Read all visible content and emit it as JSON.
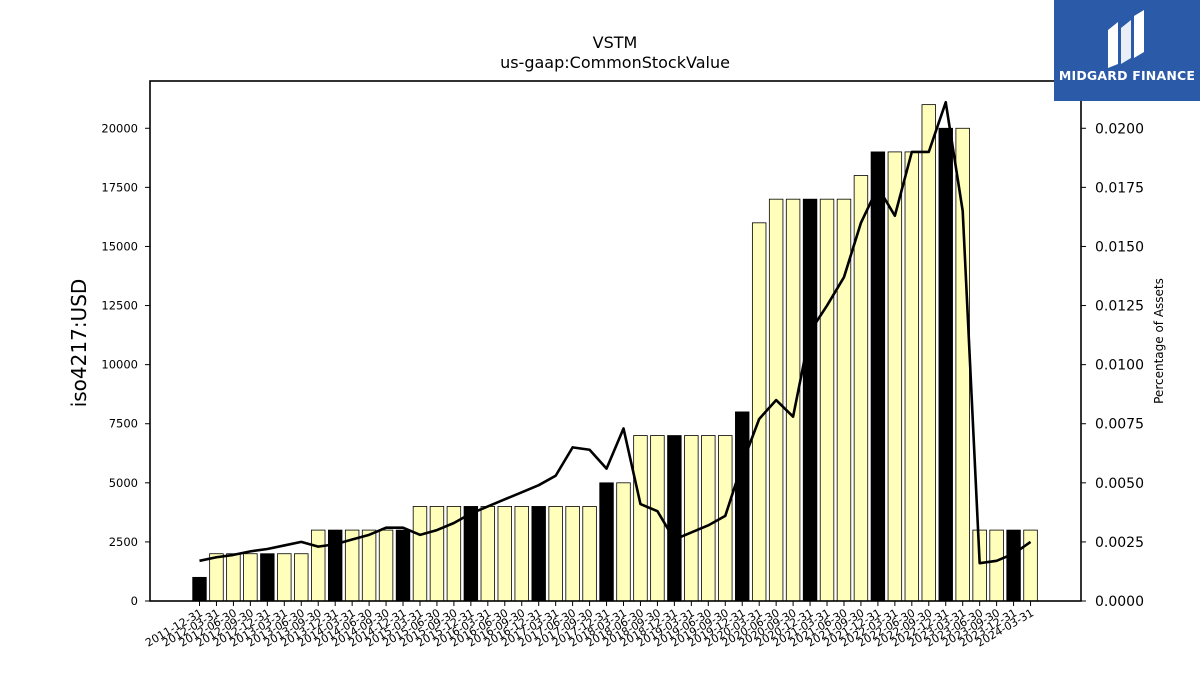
{
  "logo": {
    "text": "MIDGARD FINANCE",
    "icon": "midgard-logo-icon",
    "bg_color": "#2a5aa8"
  },
  "chart_data": {
    "type": "bar",
    "title": "VSTM",
    "subtitle": "us-gaap:CommonStockValue",
    "ylabel": "iso4217:USD",
    "y2label": "Percentage of Assets",
    "ylim": [
      0,
      22000
    ],
    "y2lim": [
      0,
      0.022
    ],
    "yticks": [
      "0",
      "2500",
      "5000",
      "7500",
      "10000",
      "12500",
      "15000",
      "17500",
      "20000"
    ],
    "yticks_values": [
      0,
      2500,
      5000,
      7500,
      10000,
      12500,
      15000,
      17500,
      20000
    ],
    "y2ticks": [
      "0.0000",
      "0.0025",
      "0.0050",
      "0.0075",
      "0.0100",
      "0.0125",
      "0.0150",
      "0.0175",
      "0.0200"
    ],
    "y2ticks_values": [
      0,
      0.0025,
      0.005,
      0.0075,
      0.01,
      0.0125,
      0.015,
      0.0175,
      0.02
    ],
    "bar_colors": {
      "annual": "#000000",
      "quarterly": "#ffffbb"
    },
    "line_color": "#000000",
    "categories": [
      "2011-12-31",
      "2012-03-31",
      "2012-06-30",
      "2012-09-30",
      "2012-12-31",
      "2013-03-31",
      "2013-06-30",
      "2013-09-30",
      "2013-12-31",
      "2014-03-31",
      "2014-06-30",
      "2014-09-30",
      "2014-12-31",
      "2015-03-31",
      "2015-06-30",
      "2015-09-30",
      "2015-12-31",
      "2016-03-31",
      "2016-06-30",
      "2016-09-30",
      "2016-12-31",
      "2017-03-31",
      "2017-06-30",
      "2017-09-30",
      "2017-12-31",
      "2018-03-31",
      "2018-06-30",
      "2018-09-30",
      "2018-12-31",
      "2019-03-31",
      "2019-06-30",
      "2019-09-30",
      "2019-12-31",
      "2020-03-31",
      "2020-06-30",
      "2020-09-30",
      "2020-12-31",
      "2021-03-31",
      "2021-06-30",
      "2021-09-30",
      "2021-12-31",
      "2022-03-31",
      "2022-06-30",
      "2022-09-30",
      "2022-12-31",
      "2023-03-31",
      "2023-06-30",
      "2023-09-30",
      "2023-12-31",
      "2024-03-31"
    ],
    "series": [
      {
        "type": "bar",
        "values": [
          1000,
          2000,
          2000,
          2000,
          2000,
          2000,
          2000,
          3000,
          3000,
          3000,
          3000,
          3000,
          3000,
          4000,
          4000,
          4000,
          4000,
          4000,
          4000,
          4000,
          4000,
          4000,
          4000,
          4000,
          5000,
          5000,
          7000,
          7000,
          7000,
          7000,
          7000,
          7000,
          8000,
          16000,
          17000,
          17000,
          17000,
          17000,
          17000,
          18000,
          19000,
          19000,
          19000,
          21000,
          20000,
          20000,
          3000,
          3000,
          3000,
          3000
        ],
        "annual": [
          true,
          false,
          false,
          false,
          true,
          false,
          false,
          false,
          true,
          false,
          false,
          false,
          true,
          false,
          false,
          false,
          true,
          false,
          false,
          false,
          true,
          false,
          false,
          false,
          true,
          false,
          false,
          false,
          true,
          false,
          false,
          false,
          true,
          false,
          false,
          false,
          true,
          false,
          false,
          false,
          true,
          false,
          false,
          false,
          true,
          false,
          false,
          false,
          true,
          false
        ]
      },
      {
        "type": "line",
        "axis": "right",
        "values": [
          0.0017,
          0.00185,
          0.00195,
          0.0021,
          0.0022,
          0.00235,
          0.0025,
          0.0023,
          0.0024,
          0.0026,
          0.0028,
          0.0031,
          0.0031,
          0.0028,
          0.003,
          0.0033,
          0.0037,
          0.004,
          0.0043,
          0.0046,
          0.0049,
          0.0053,
          0.0065,
          0.0064,
          0.0056,
          0.0073,
          0.0041,
          0.0038,
          0.0026,
          0.0029,
          0.0032,
          0.0036,
          0.0058,
          0.0077,
          0.0085,
          0.0078,
          0.0114,
          0.0125,
          0.0137,
          0.016,
          0.0175,
          0.0163,
          0.019,
          0.019,
          0.0211,
          0.0165,
          0.0016,
          0.0017,
          0.002,
          0.0025
        ]
      }
    ]
  }
}
